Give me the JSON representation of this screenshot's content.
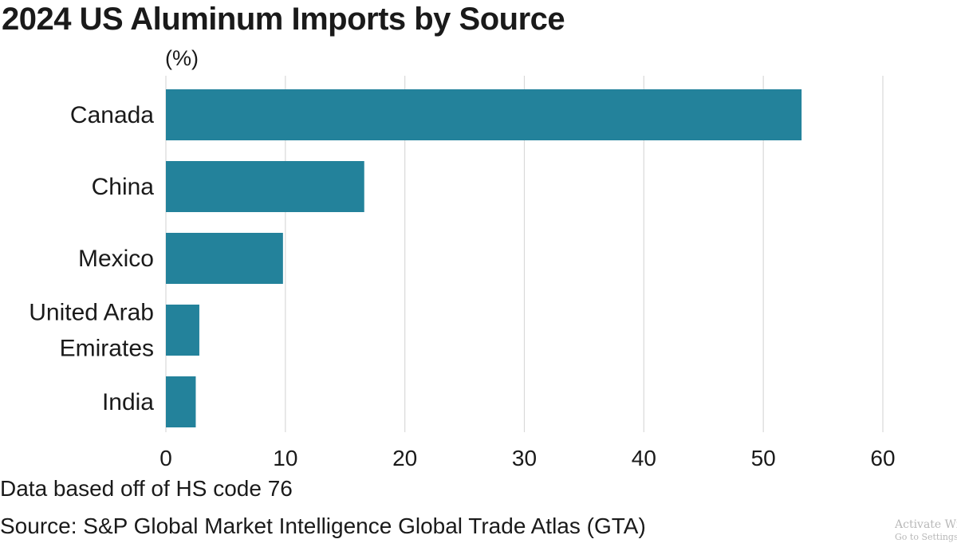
{
  "watermark": {
    "line1": "Activate Wi",
    "line2": "Go to Settings"
  },
  "chart_data": {
    "type": "bar",
    "orientation": "horizontal",
    "title": "2024 US Aluminum Imports by Source",
    "unit_label": "(%)",
    "categories": [
      [
        "Canada"
      ],
      [
        "China"
      ],
      [
        "Mexico"
      ],
      [
        "United Arab",
        "Emirates"
      ],
      [
        "India"
      ]
    ],
    "values": [
      53.2,
      16.6,
      9.8,
      2.8,
      2.5
    ],
    "xlim": [
      0,
      60
    ],
    "xticks": [
      "0",
      "10",
      "20",
      "30",
      "40",
      "50",
      "60"
    ],
    "grid": true,
    "bar_color": "#23829b",
    "notes": [
      "Data based off of HS code 76",
      "Source: S&P Global Market Intelligence Global Trade Atlas (GTA)"
    ]
  }
}
